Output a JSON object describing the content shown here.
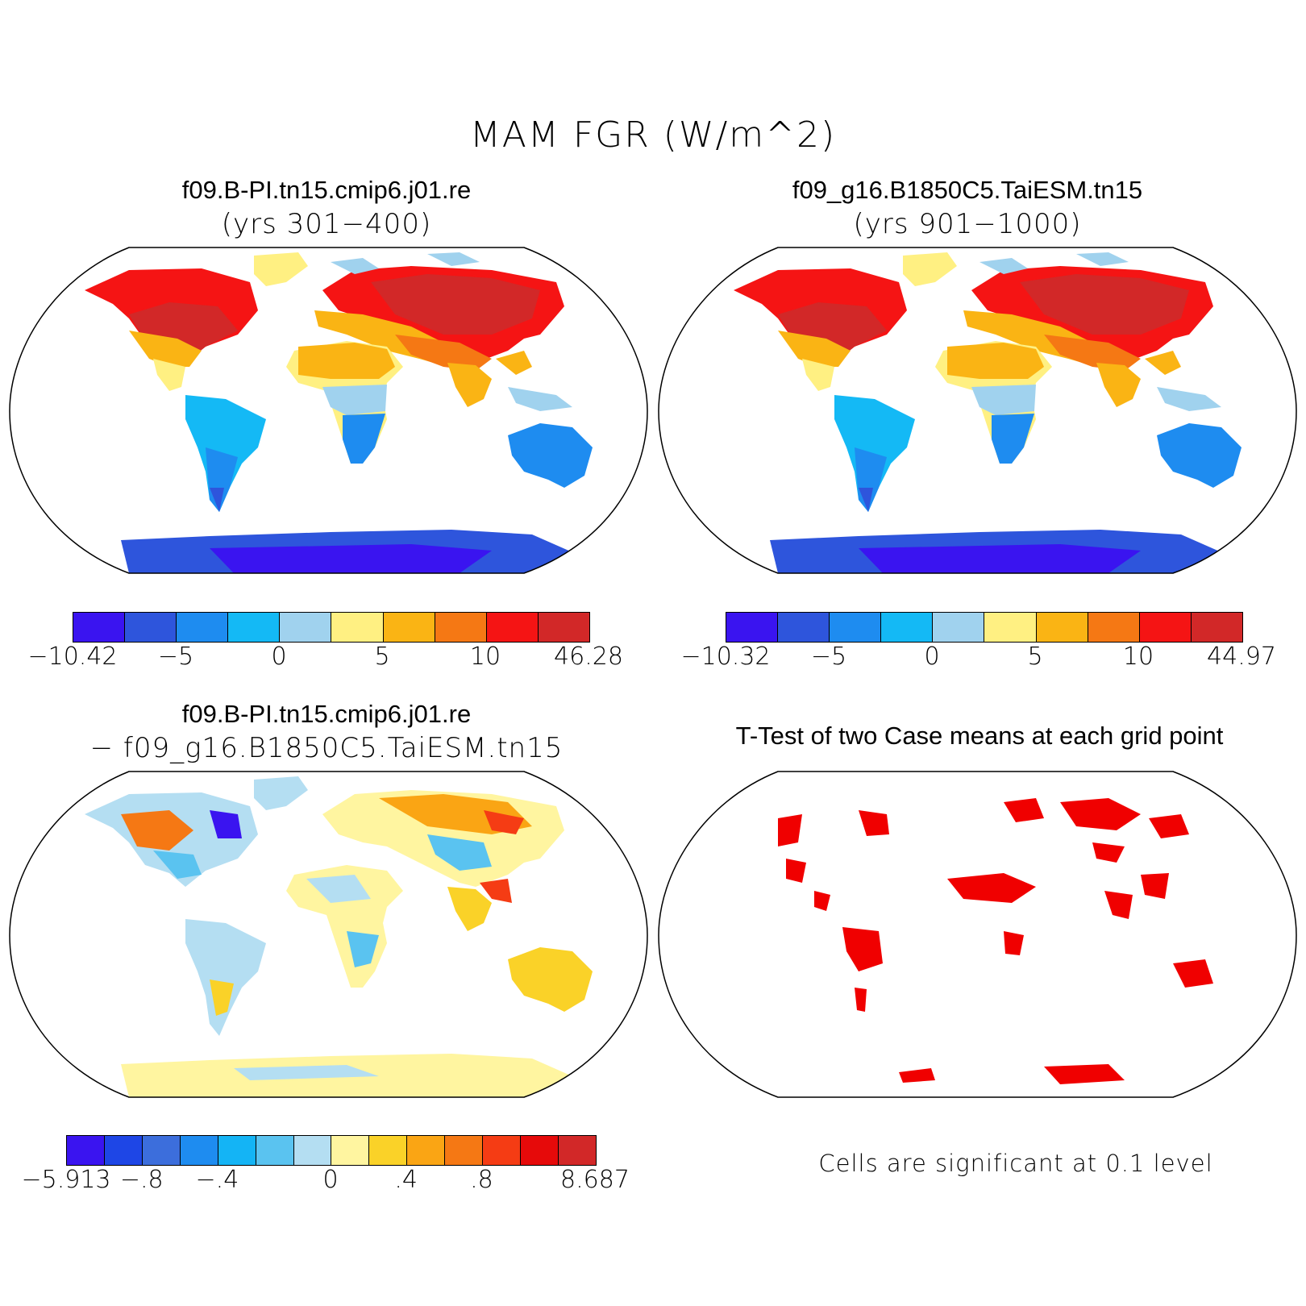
{
  "main_title": "MAM FGR (W/m^2)",
  "panels": [
    {
      "title": "f09.B-PI.tn15.cmip6.j01.re",
      "subtitle": "(yrs 301−400)",
      "colorbar": {
        "colors": [
          "#3a14f0",
          "#2e55dc",
          "#1e8cf0",
          "#14b9f5",
          "#a0d2ee",
          "#fff082",
          "#fab414",
          "#f57814",
          "#f51414",
          "#d22828"
        ],
        "labels": [
          "−10.42",
          "−5",
          "0",
          "5",
          "10",
          "46.28"
        ],
        "label_positions": [
          0,
          2,
          4,
          6,
          8,
          10
        ]
      }
    },
    {
      "title": "f09_g16.B1850C5.TaiESM.tn15",
      "subtitle": "(yrs 901−1000)",
      "colorbar": {
        "colors": [
          "#3a14f0",
          "#2e55dc",
          "#1e8cf0",
          "#14b9f5",
          "#a0d2ee",
          "#fff082",
          "#fab414",
          "#f57814",
          "#f51414",
          "#d22828"
        ],
        "labels": [
          "−10.32",
          "−5",
          "0",
          "5",
          "10",
          "44.97"
        ],
        "label_positions": [
          0,
          2,
          4,
          6,
          8,
          10
        ]
      }
    },
    {
      "title": "f09.B-PI.tn15.cmip6.j01.re",
      "subtitle": "− f09_g16.B1850C5.TaiESM.tn15",
      "colorbar": {
        "colors": [
          "#3a14f0",
          "#1e46e6",
          "#3c6edc",
          "#1e8cf0",
          "#14b4f5",
          "#5ac3f0",
          "#b4def2",
          "#fff5a0",
          "#fad228",
          "#faa514",
          "#f57814",
          "#f53c14",
          "#e60a0a",
          "#d22828"
        ],
        "labels": [
          "−5.913",
          "−.8",
          "−.4",
          "0",
          ".4",
          ".8",
          "8.687"
        ],
        "label_positions": [
          0,
          2,
          4,
          7,
          9,
          11,
          14
        ]
      }
    },
    {
      "title": "T-Test of two Case means at each grid point",
      "note": "Cells are significant at 0.1 level"
    }
  ],
  "map_colors": {
    "land_outline": "#000000",
    "significant": "#f00000"
  }
}
